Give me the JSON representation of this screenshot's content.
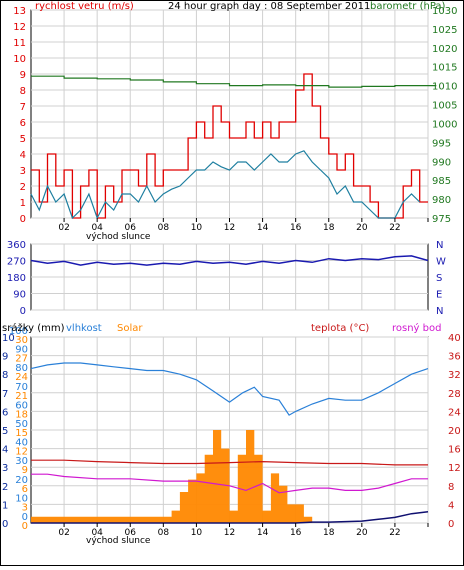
{
  "colors": {
    "wind_gust": "#e00000",
    "wind_avg": "#1e7fa0",
    "pressure": "#207820",
    "direction": "#1a1ab0",
    "solar": "#ff8800",
    "humidity": "#2a80d8",
    "temperature": "#c81818",
    "dewpoint": "#d018d0",
    "rain": "#101070",
    "grid": "#d0d0d0",
    "axis": "#000000"
  },
  "chart_data": [
    {
      "type": "line",
      "title": "24 hour graph day : 08 September 2011",
      "left_axis_label": "rychlost vetru (m/s)",
      "right_axis_label": "barometr (hPa)",
      "x_ticks": [
        "02",
        "04",
        "06",
        "08",
        "10",
        "12",
        "14",
        "16",
        "18",
        "20",
        "22",
        ""
      ],
      "x_label": "východ slunce",
      "ylim_left": [
        0,
        13
      ],
      "y_ticks_left": [
        "0",
        "1",
        "2",
        "3",
        "4",
        "5",
        "6",
        "7",
        "8",
        "9",
        "10",
        "11",
        "12",
        "13"
      ],
      "ylim_right": [
        975,
        1030
      ],
      "y_ticks_right": [
        "975",
        "980",
        "985",
        "990",
        "995",
        "1000",
        "1005",
        "1010",
        "1015",
        "1020",
        "1025",
        "1030"
      ],
      "xlim": [
        0,
        24
      ],
      "series": [
        {
          "name": "wind_gust",
          "x": [
            0,
            0.5,
            1,
            1.5,
            2,
            2.5,
            3,
            3.5,
            4,
            4.5,
            5,
            5.5,
            6,
            6.5,
            7,
            7.5,
            8,
            8.5,
            9,
            9.5,
            10,
            10.5,
            11,
            11.5,
            12,
            12.5,
            13,
            13.5,
            14,
            14.5,
            15,
            15.5,
            16,
            16.5,
            17,
            17.5,
            18,
            18.5,
            19,
            19.5,
            20,
            20.5,
            21,
            21.5,
            22,
            22.5,
            23,
            23.5
          ],
          "values": [
            3,
            1,
            4,
            2,
            3,
            0,
            2,
            3,
            0,
            2,
            1,
            3,
            3,
            2,
            4,
            2,
            3,
            3,
            3,
            5,
            6,
            5,
            7,
            6,
            5,
            5,
            6,
            5,
            6,
            5,
            6,
            6,
            8,
            9,
            7,
            5,
            4,
            3,
            4,
            2,
            2,
            1,
            0,
            0,
            0,
            2,
            3,
            1
          ]
        },
        {
          "name": "wind_avg",
          "x": [
            0,
            0.5,
            1,
            1.5,
            2,
            2.5,
            3,
            3.5,
            4,
            4.5,
            5,
            5.5,
            6,
            6.5,
            7,
            7.5,
            8,
            8.5,
            9,
            9.5,
            10,
            10.5,
            11,
            11.5,
            12,
            12.5,
            13,
            13.5,
            14,
            14.5,
            15,
            15.5,
            16,
            16.5,
            17,
            17.5,
            18,
            18.5,
            19,
            19.5,
            20,
            20.5,
            21,
            21.5,
            22,
            22.5,
            23,
            23.5
          ],
          "values": [
            1.5,
            0.5,
            2,
            1,
            1.5,
            0,
            0.5,
            1.5,
            0,
            1,
            0.5,
            1.5,
            1.5,
            1,
            2,
            1,
            1.5,
            1.8,
            2,
            2.5,
            3,
            3,
            3.5,
            3.2,
            3,
            3.5,
            3.5,
            3,
            3.5,
            4,
            3.5,
            3.5,
            4,
            4.2,
            3.5,
            3,
            2.5,
            1.5,
            2,
            1,
            1,
            0.5,
            0,
            0,
            0,
            1,
            1.5,
            1
          ]
        },
        {
          "name": "pressure",
          "x": [
            0,
            2,
            4,
            6,
            8,
            10,
            12,
            14,
            16,
            18,
            20,
            22,
            24
          ],
          "values": [
            1012.5,
            1012,
            1011.8,
            1011.5,
            1011,
            1010.5,
            1010,
            1010.2,
            1010,
            1009.6,
            1009.8,
            1010,
            1010
          ]
        }
      ]
    },
    {
      "type": "scatter",
      "y_ticks_left": [
        "360",
        "270",
        "180",
        "90",
        "0"
      ],
      "ylim": [
        0,
        360
      ],
      "y_ticks_right": [
        "N",
        "W",
        "S",
        "E",
        "N"
      ],
      "xlim": [
        0,
        24
      ],
      "series": [
        {
          "name": "wind_direction",
          "x": [
            0,
            1,
            2,
            3,
            4,
            5,
            6,
            7,
            8,
            9,
            10,
            11,
            12,
            13,
            14,
            15,
            16,
            17,
            18,
            19,
            20,
            21,
            22,
            23,
            24
          ],
          "values": [
            270,
            255,
            265,
            245,
            260,
            250,
            255,
            245,
            255,
            250,
            265,
            255,
            260,
            250,
            265,
            255,
            270,
            260,
            280,
            270,
            280,
            275,
            290,
            295,
            270
          ]
        }
      ]
    },
    {
      "type": "area",
      "labels_left": [
        "srážky (mm)",
        "vlhkost",
        "Solar"
      ],
      "labels_right": [
        "teplota (°C)",
        "rosný bod"
      ],
      "x_ticks": [
        "02",
        "04",
        "06",
        "08",
        "10",
        "12",
        "14",
        "16",
        "18",
        "20",
        "22",
        ""
      ],
      "x_label": "východ slunce",
      "xlim": [
        0,
        24
      ],
      "axis_rain_ticks": [
        "0",
        "1",
        "2",
        "3",
        "4",
        "5",
        "6",
        "7",
        "8",
        "9",
        "10"
      ],
      "axis_rain_ylim": [
        0,
        10
      ],
      "axis_humidity_ticks": [
        "0",
        "10",
        "20",
        "30",
        "40",
        "50",
        "60",
        "70",
        "80",
        "90",
        "100"
      ],
      "axis_humidity_ylim": [
        0,
        100
      ],
      "axis_solar_ticks": [
        "0",
        "3",
        "6",
        "9",
        "12",
        "15",
        "18",
        "21",
        "24",
        "27",
        "30"
      ],
      "axis_solar_ylim": [
        0,
        30
      ],
      "axis_temp_ticks": [
        "0",
        "4",
        "8",
        "12",
        "16",
        "20",
        "24",
        "28",
        "32",
        "36",
        "40"
      ],
      "axis_temp_ylim": [
        0,
        40
      ],
      "series": [
        {
          "name": "humidity",
          "x": [
            0,
            1,
            2,
            3,
            4,
            5,
            6,
            7,
            8,
            9,
            10,
            11,
            12,
            12.8,
            13.5,
            14,
            15,
            15.6,
            16,
            17,
            18,
            19,
            20,
            21,
            22,
            23,
            24
          ],
          "values": [
            83,
            85,
            86,
            86,
            85,
            84,
            83,
            82,
            82,
            80,
            77,
            71,
            65,
            70,
            73,
            68,
            66,
            58,
            60,
            64,
            67,
            66,
            66,
            70,
            75,
            80,
            83
          ]
        },
        {
          "name": "temperature",
          "x": [
            0,
            2,
            4,
            6,
            8,
            10,
            12,
            14,
            16,
            18,
            20,
            22,
            24
          ],
          "values": [
            13.5,
            13.5,
            13.2,
            13,
            12.8,
            12.8,
            13,
            13.2,
            13,
            12.8,
            12.8,
            12.5,
            12.5
          ]
        },
        {
          "name": "dewpoint",
          "x": [
            0,
            1,
            2,
            4,
            6,
            8,
            10,
            11,
            12,
            13,
            14,
            15,
            16,
            17,
            18,
            19,
            20,
            21,
            22,
            23,
            24
          ],
          "values": [
            10.5,
            10.5,
            10,
            9.5,
            9.5,
            9,
            9,
            8.5,
            8,
            7,
            8.5,
            6.5,
            7,
            7.5,
            7.5,
            7,
            7,
            7.5,
            8.5,
            9.5,
            9.5
          ]
        },
        {
          "name": "solar",
          "x": [
            0,
            8,
            8.5,
            9,
            9.5,
            10,
            10.5,
            11,
            11.5,
            12,
            12.5,
            13,
            13.5,
            14,
            14.5,
            15,
            15.5,
            16,
            16.5,
            17,
            24
          ],
          "values": [
            1,
            1,
            2,
            5,
            7,
            8,
            11,
            15,
            12,
            2,
            11,
            15,
            11,
            2,
            8,
            6,
            3,
            3,
            1,
            0,
            0
          ]
        },
        {
          "name": "rain",
          "x": [
            0,
            16,
            17,
            18,
            20,
            21,
            22,
            23,
            24
          ],
          "values": [
            0,
            0,
            0.05,
            0.05,
            0.1,
            0.2,
            0.3,
            0.5,
            0.6
          ]
        }
      ]
    }
  ]
}
